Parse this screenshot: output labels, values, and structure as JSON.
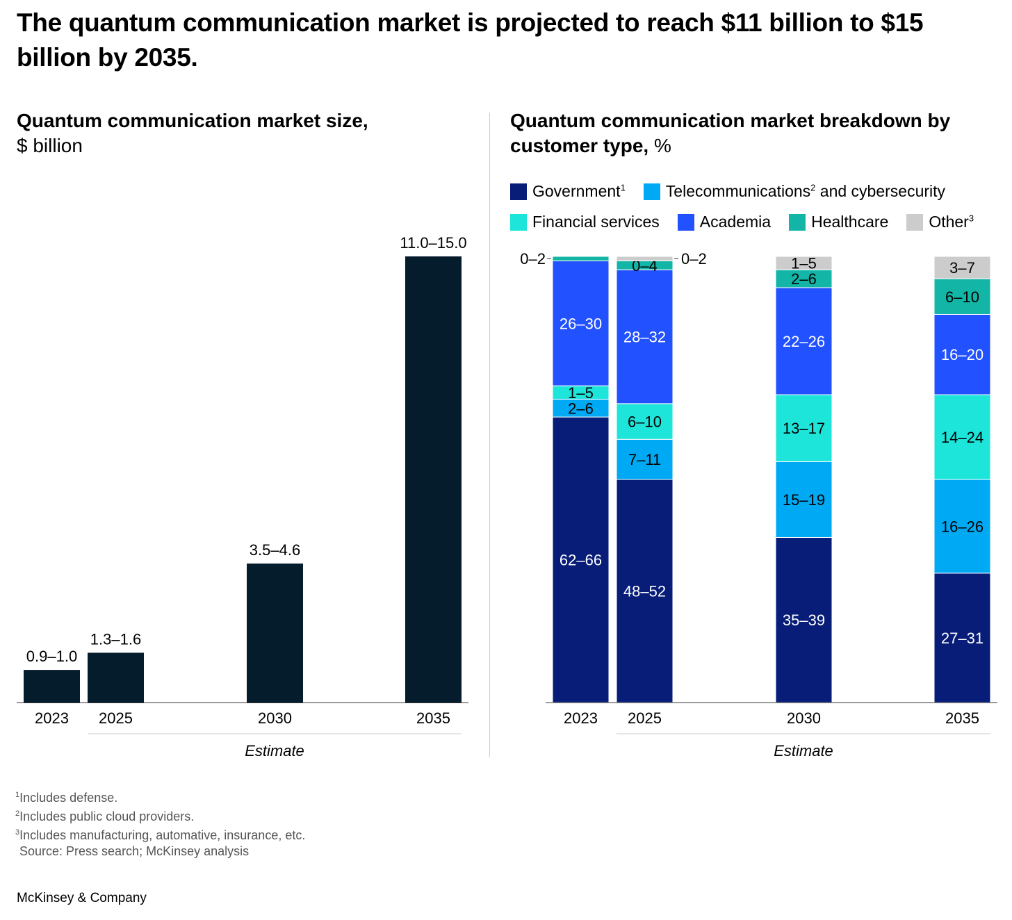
{
  "title": "The quantum communication market is projected to reach $11 billion to $15 billion by 2035.",
  "chart_data": [
    {
      "type": "bar",
      "title": "Quantum communication market size,",
      "unit": "$ billion",
      "categories": [
        "2023",
        "2025",
        "2030",
        "2035"
      ],
      "value_labels": [
        "0.9–1.0",
        "1.3–1.6",
        "3.5–4.6",
        "11.0–15.0"
      ],
      "values_low": [
        0.9,
        1.3,
        3.5,
        11.0
      ],
      "values_high": [
        1.0,
        1.6,
        4.6,
        15.0
      ],
      "estimate_label": "Estimate",
      "estimate_range": [
        "2025",
        "2035"
      ]
    },
    {
      "type": "bar",
      "stacked": true,
      "title": "Quantum communication market breakdown by customer type,",
      "unit": "%",
      "categories": [
        "2023",
        "2025",
        "2030",
        "2035"
      ],
      "estimate_label": "Estimate",
      "legend": [
        {
          "name": "Government",
          "sup": "1",
          "color": "#071d78"
        },
        {
          "name": "Telecommunications",
          "sup": "2",
          "suffix": " and cybersecurity",
          "color": "#00a9f4"
        },
        {
          "name": "Financial services",
          "sup": "",
          "color": "#1ee5d9"
        },
        {
          "name": "Academia",
          "sup": "",
          "color": "#2251ff"
        },
        {
          "name": "Healthcare",
          "sup": "",
          "color": "#12b5a6"
        },
        {
          "name": "Other",
          "sup": "3",
          "color": "#cccccc"
        }
      ],
      "series": [
        {
          "name": "Government",
          "labels": [
            "62–66",
            "48–52",
            "35–39",
            "27–31"
          ],
          "values": [
            64,
            50,
            37,
            29
          ]
        },
        {
          "name": "Telecommunications and cybersecurity",
          "labels": [
            "2–6",
            "7–11",
            "15–19",
            "16–26"
          ],
          "values": [
            4,
            9,
            17,
            21
          ]
        },
        {
          "name": "Financial services",
          "labels": [
            "1–5",
            "6–10",
            "13–17",
            "14–24"
          ],
          "values": [
            3,
            8,
            15,
            19
          ]
        },
        {
          "name": "Academia",
          "labels": [
            "26–30",
            "28–32",
            "22–26",
            "16–20"
          ],
          "values": [
            28,
            30,
            24,
            18
          ]
        },
        {
          "name": "Healthcare",
          "labels": [
            "0–2",
            "0–4",
            "2–6",
            "6–10"
          ],
          "values": [
            1,
            2,
            4,
            8
          ]
        },
        {
          "name": "Other",
          "labels": [
            "",
            "0–2",
            "1–5",
            "3–7"
          ],
          "values": [
            0,
            1,
            3,
            5
          ]
        }
      ],
      "outside_labels": [
        {
          "category": "2023",
          "series": "Healthcare",
          "label": "0–2"
        },
        {
          "category": "2025",
          "series": "Other",
          "label": "0–2"
        }
      ]
    }
  ],
  "footnotes": [
    "Includes defense.",
    "Includes public cloud providers.",
    "Includes manufacturing, automative, insurance, etc."
  ],
  "footnote_marks": [
    "1",
    "2",
    "3"
  ],
  "source": "Source: Press search; McKinsey analysis",
  "brand": "McKinsey & Company",
  "colors": {
    "market_bar": "#051c2c"
  }
}
